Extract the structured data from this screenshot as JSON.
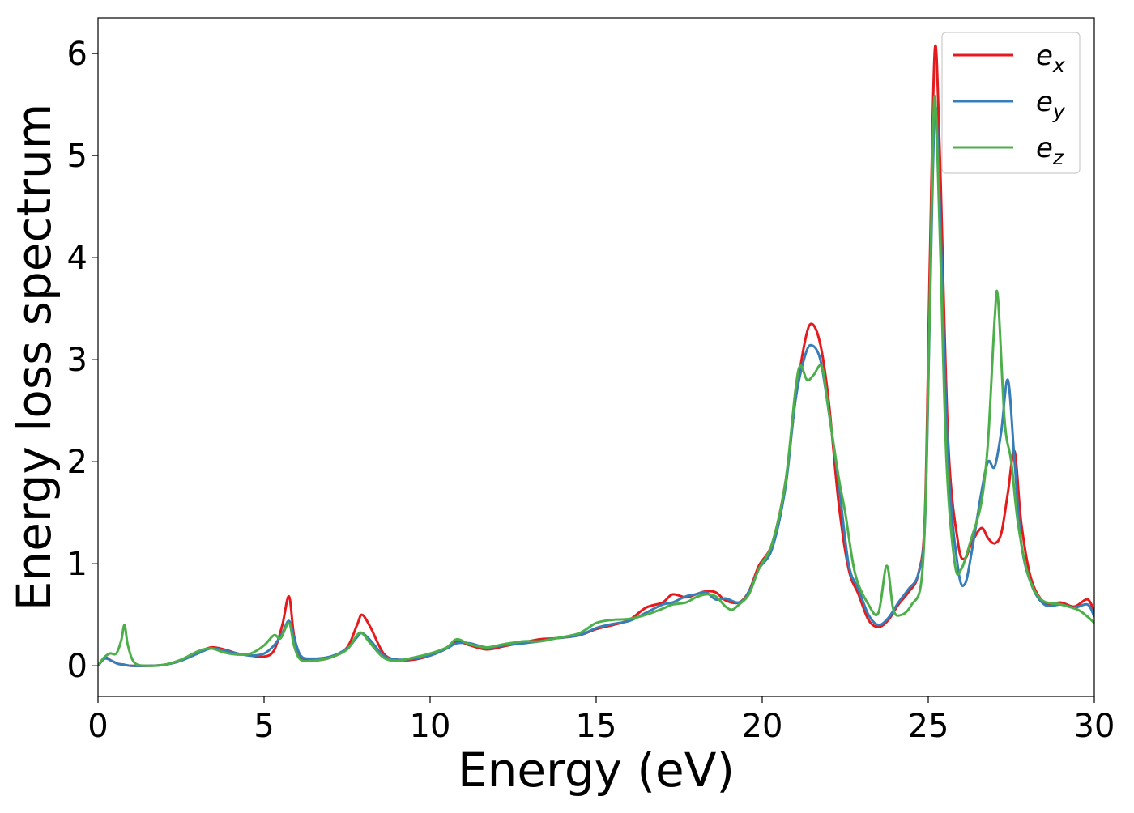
{
  "chart_data": {
    "type": "line",
    "title": "",
    "xlabel": "Energy (eV)",
    "ylabel": "Energy loss spectrum",
    "xlim": [
      0,
      30
    ],
    "ylim": [
      -0.3,
      6.35
    ],
    "xticks": [
      0,
      5,
      10,
      15,
      20,
      25,
      30
    ],
    "yticks": [
      0,
      1,
      2,
      3,
      4,
      5,
      6
    ],
    "grid": false,
    "legend_position": "top-right",
    "series": [
      {
        "name": "e_x",
        "label_main": "e",
        "label_sub": "x",
        "color": "#e41a1c",
        "points": [
          [
            0,
            0
          ],
          [
            0.2,
            0.08
          ],
          [
            0.4,
            0.05
          ],
          [
            0.6,
            0.02
          ],
          [
            0.8,
            0.01
          ],
          [
            1.0,
            0.0
          ],
          [
            1.5,
            0.0
          ],
          [
            2.0,
            0.01
          ],
          [
            2.5,
            0.05
          ],
          [
            3.0,
            0.13
          ],
          [
            3.4,
            0.18
          ],
          [
            3.8,
            0.16
          ],
          [
            4.2,
            0.12
          ],
          [
            4.6,
            0.1
          ],
          [
            5.0,
            0.09
          ],
          [
            5.3,
            0.15
          ],
          [
            5.55,
            0.4
          ],
          [
            5.75,
            0.68
          ],
          [
            5.9,
            0.3
          ],
          [
            6.1,
            0.08
          ],
          [
            6.4,
            0.05
          ],
          [
            7.0,
            0.08
          ],
          [
            7.5,
            0.18
          ],
          [
            7.8,
            0.4
          ],
          [
            7.95,
            0.5
          ],
          [
            8.2,
            0.38
          ],
          [
            8.6,
            0.12
          ],
          [
            9.0,
            0.06
          ],
          [
            9.5,
            0.06
          ],
          [
            10.0,
            0.1
          ],
          [
            10.5,
            0.17
          ],
          [
            10.8,
            0.24
          ],
          [
            11.2,
            0.2
          ],
          [
            11.7,
            0.16
          ],
          [
            12.2,
            0.19
          ],
          [
            12.8,
            0.23
          ],
          [
            13.3,
            0.26
          ],
          [
            13.8,
            0.27
          ],
          [
            14.5,
            0.3
          ],
          [
            15.0,
            0.36
          ],
          [
            15.5,
            0.4
          ],
          [
            16.0,
            0.45
          ],
          [
            16.5,
            0.57
          ],
          [
            17.0,
            0.62
          ],
          [
            17.3,
            0.7
          ],
          [
            17.7,
            0.67
          ],
          [
            18.0,
            0.7
          ],
          [
            18.3,
            0.73
          ],
          [
            18.6,
            0.72
          ],
          [
            18.9,
            0.64
          ],
          [
            19.3,
            0.62
          ],
          [
            19.6,
            0.73
          ],
          [
            19.9,
            0.98
          ],
          [
            20.3,
            1.2
          ],
          [
            20.7,
            1.8
          ],
          [
            21.0,
            2.6
          ],
          [
            21.3,
            3.2
          ],
          [
            21.5,
            3.35
          ],
          [
            21.75,
            3.15
          ],
          [
            22.0,
            2.6
          ],
          [
            22.3,
            1.6
          ],
          [
            22.6,
            0.95
          ],
          [
            22.9,
            0.7
          ],
          [
            23.2,
            0.45
          ],
          [
            23.5,
            0.38
          ],
          [
            23.8,
            0.45
          ],
          [
            24.1,
            0.6
          ],
          [
            24.4,
            0.72
          ],
          [
            24.7,
            0.9
          ],
          [
            24.9,
            1.5
          ],
          [
            25.05,
            4.0
          ],
          [
            25.2,
            6.05
          ],
          [
            25.35,
            5.0
          ],
          [
            25.6,
            2.2
          ],
          [
            25.9,
            1.2
          ],
          [
            26.1,
            1.05
          ],
          [
            26.3,
            1.2
          ],
          [
            26.6,
            1.35
          ],
          [
            26.8,
            1.25
          ],
          [
            27.0,
            1.2
          ],
          [
            27.2,
            1.3
          ],
          [
            27.4,
            1.7
          ],
          [
            27.6,
            2.1
          ],
          [
            27.8,
            1.4
          ],
          [
            28.1,
            0.85
          ],
          [
            28.5,
            0.62
          ],
          [
            29.0,
            0.62
          ],
          [
            29.4,
            0.58
          ],
          [
            29.8,
            0.65
          ],
          [
            30.0,
            0.52
          ]
        ]
      },
      {
        "name": "e_y",
        "label_main": "e",
        "label_sub": "y",
        "color": "#377eb8",
        "points": [
          [
            0,
            0
          ],
          [
            0.2,
            0.07
          ],
          [
            0.4,
            0.05
          ],
          [
            0.6,
            0.02
          ],
          [
            0.8,
            0.01
          ],
          [
            1.0,
            0.0
          ],
          [
            1.5,
            0.0
          ],
          [
            2.0,
            0.01
          ],
          [
            2.5,
            0.05
          ],
          [
            3.0,
            0.12
          ],
          [
            3.4,
            0.17
          ],
          [
            3.8,
            0.15
          ],
          [
            4.2,
            0.12
          ],
          [
            4.6,
            0.1
          ],
          [
            5.0,
            0.12
          ],
          [
            5.3,
            0.2
          ],
          [
            5.55,
            0.32
          ],
          [
            5.75,
            0.44
          ],
          [
            5.9,
            0.28
          ],
          [
            6.1,
            0.1
          ],
          [
            6.4,
            0.07
          ],
          [
            7.0,
            0.09
          ],
          [
            7.5,
            0.17
          ],
          [
            7.8,
            0.28
          ],
          [
            7.95,
            0.32
          ],
          [
            8.2,
            0.25
          ],
          [
            8.6,
            0.1
          ],
          [
            9.0,
            0.06
          ],
          [
            9.5,
            0.07
          ],
          [
            10.0,
            0.1
          ],
          [
            10.5,
            0.17
          ],
          [
            10.8,
            0.22
          ],
          [
            11.2,
            0.22
          ],
          [
            11.7,
            0.18
          ],
          [
            12.2,
            0.2
          ],
          [
            12.8,
            0.22
          ],
          [
            13.3,
            0.24
          ],
          [
            13.8,
            0.27
          ],
          [
            14.5,
            0.3
          ],
          [
            15.0,
            0.37
          ],
          [
            15.5,
            0.41
          ],
          [
            16.0,
            0.44
          ],
          [
            16.5,
            0.52
          ],
          [
            17.0,
            0.6
          ],
          [
            17.3,
            0.62
          ],
          [
            17.7,
            0.68
          ],
          [
            18.0,
            0.7
          ],
          [
            18.3,
            0.72
          ],
          [
            18.6,
            0.65
          ],
          [
            18.9,
            0.66
          ],
          [
            19.3,
            0.62
          ],
          [
            19.6,
            0.72
          ],
          [
            19.9,
            0.95
          ],
          [
            20.3,
            1.15
          ],
          [
            20.7,
            1.75
          ],
          [
            21.0,
            2.6
          ],
          [
            21.3,
            3.05
          ],
          [
            21.5,
            3.14
          ],
          [
            21.75,
            3.0
          ],
          [
            22.0,
            2.5
          ],
          [
            22.3,
            1.8
          ],
          [
            22.6,
            1.0
          ],
          [
            22.9,
            0.75
          ],
          [
            23.2,
            0.5
          ],
          [
            23.5,
            0.4
          ],
          [
            23.8,
            0.47
          ],
          [
            24.1,
            0.62
          ],
          [
            24.4,
            0.75
          ],
          [
            24.7,
            0.9
          ],
          [
            24.9,
            1.4
          ],
          [
            25.05,
            3.5
          ],
          [
            25.2,
            5.45
          ],
          [
            25.35,
            4.5
          ],
          [
            25.6,
            2.0
          ],
          [
            25.9,
            0.95
          ],
          [
            26.1,
            0.8
          ],
          [
            26.3,
            1.1
          ],
          [
            26.6,
            1.7
          ],
          [
            26.8,
            2.0
          ],
          [
            27.0,
            1.95
          ],
          [
            27.2,
            2.3
          ],
          [
            27.4,
            2.8
          ],
          [
            27.6,
            2.0
          ],
          [
            27.8,
            1.2
          ],
          [
            28.1,
            0.8
          ],
          [
            28.5,
            0.6
          ],
          [
            29.0,
            0.6
          ],
          [
            29.4,
            0.57
          ],
          [
            29.8,
            0.6
          ],
          [
            30.0,
            0.48
          ]
        ]
      },
      {
        "name": "e_z",
        "label_main": "e",
        "label_sub": "z",
        "color": "#4daf4a",
        "points": [
          [
            0,
            0
          ],
          [
            0.15,
            0.07
          ],
          [
            0.35,
            0.12
          ],
          [
            0.55,
            0.12
          ],
          [
            0.7,
            0.25
          ],
          [
            0.8,
            0.4
          ],
          [
            0.9,
            0.2
          ],
          [
            1.1,
            0.03
          ],
          [
            1.5,
            0.0
          ],
          [
            2.0,
            0.01
          ],
          [
            2.5,
            0.06
          ],
          [
            3.0,
            0.14
          ],
          [
            3.4,
            0.17
          ],
          [
            3.8,
            0.13
          ],
          [
            4.2,
            0.11
          ],
          [
            4.6,
            0.12
          ],
          [
            5.0,
            0.2
          ],
          [
            5.3,
            0.3
          ],
          [
            5.5,
            0.27
          ],
          [
            5.75,
            0.42
          ],
          [
            5.9,
            0.2
          ],
          [
            6.1,
            0.06
          ],
          [
            6.5,
            0.05
          ],
          [
            7.0,
            0.08
          ],
          [
            7.5,
            0.16
          ],
          [
            7.8,
            0.3
          ],
          [
            7.95,
            0.32
          ],
          [
            8.2,
            0.22
          ],
          [
            8.6,
            0.08
          ],
          [
            9.0,
            0.05
          ],
          [
            9.5,
            0.08
          ],
          [
            10.0,
            0.12
          ],
          [
            10.5,
            0.18
          ],
          [
            10.8,
            0.26
          ],
          [
            11.2,
            0.21
          ],
          [
            11.7,
            0.18
          ],
          [
            12.2,
            0.21
          ],
          [
            12.8,
            0.24
          ],
          [
            13.3,
            0.24
          ],
          [
            13.8,
            0.27
          ],
          [
            14.5,
            0.32
          ],
          [
            15.0,
            0.42
          ],
          [
            15.5,
            0.45
          ],
          [
            16.0,
            0.46
          ],
          [
            16.5,
            0.5
          ],
          [
            17.0,
            0.56
          ],
          [
            17.3,
            0.6
          ],
          [
            17.7,
            0.62
          ],
          [
            18.0,
            0.67
          ],
          [
            18.3,
            0.7
          ],
          [
            18.6,
            0.68
          ],
          [
            18.9,
            0.58
          ],
          [
            19.1,
            0.55
          ],
          [
            19.3,
            0.6
          ],
          [
            19.6,
            0.7
          ],
          [
            19.9,
            0.95
          ],
          [
            20.3,
            1.2
          ],
          [
            20.7,
            1.8
          ],
          [
            21.0,
            2.7
          ],
          [
            21.15,
            2.94
          ],
          [
            21.35,
            2.8
          ],
          [
            21.55,
            2.85
          ],
          [
            21.8,
            2.93
          ],
          [
            22.0,
            2.5
          ],
          [
            22.3,
            1.85
          ],
          [
            22.5,
            1.5
          ],
          [
            22.8,
            0.9
          ],
          [
            23.2,
            0.6
          ],
          [
            23.5,
            0.52
          ],
          [
            23.75,
            0.98
          ],
          [
            23.95,
            0.55
          ],
          [
            24.2,
            0.5
          ],
          [
            24.5,
            0.6
          ],
          [
            24.8,
            0.85
          ],
          [
            24.95,
            2.0
          ],
          [
            25.1,
            4.5
          ],
          [
            25.2,
            5.58
          ],
          [
            25.35,
            4.2
          ],
          [
            25.55,
            2.0
          ],
          [
            25.8,
            1.0
          ],
          [
            26.0,
            0.95
          ],
          [
            26.3,
            1.25
          ],
          [
            26.6,
            1.6
          ],
          [
            26.8,
            2.2
          ],
          [
            27.0,
            3.4
          ],
          [
            27.1,
            3.6
          ],
          [
            27.3,
            2.4
          ],
          [
            27.5,
            2.0
          ],
          [
            27.7,
            1.4
          ],
          [
            28.0,
            0.9
          ],
          [
            28.4,
            0.65
          ],
          [
            29.0,
            0.6
          ],
          [
            29.5,
            0.55
          ],
          [
            29.8,
            0.48
          ],
          [
            30.0,
            0.42
          ]
        ]
      }
    ]
  }
}
